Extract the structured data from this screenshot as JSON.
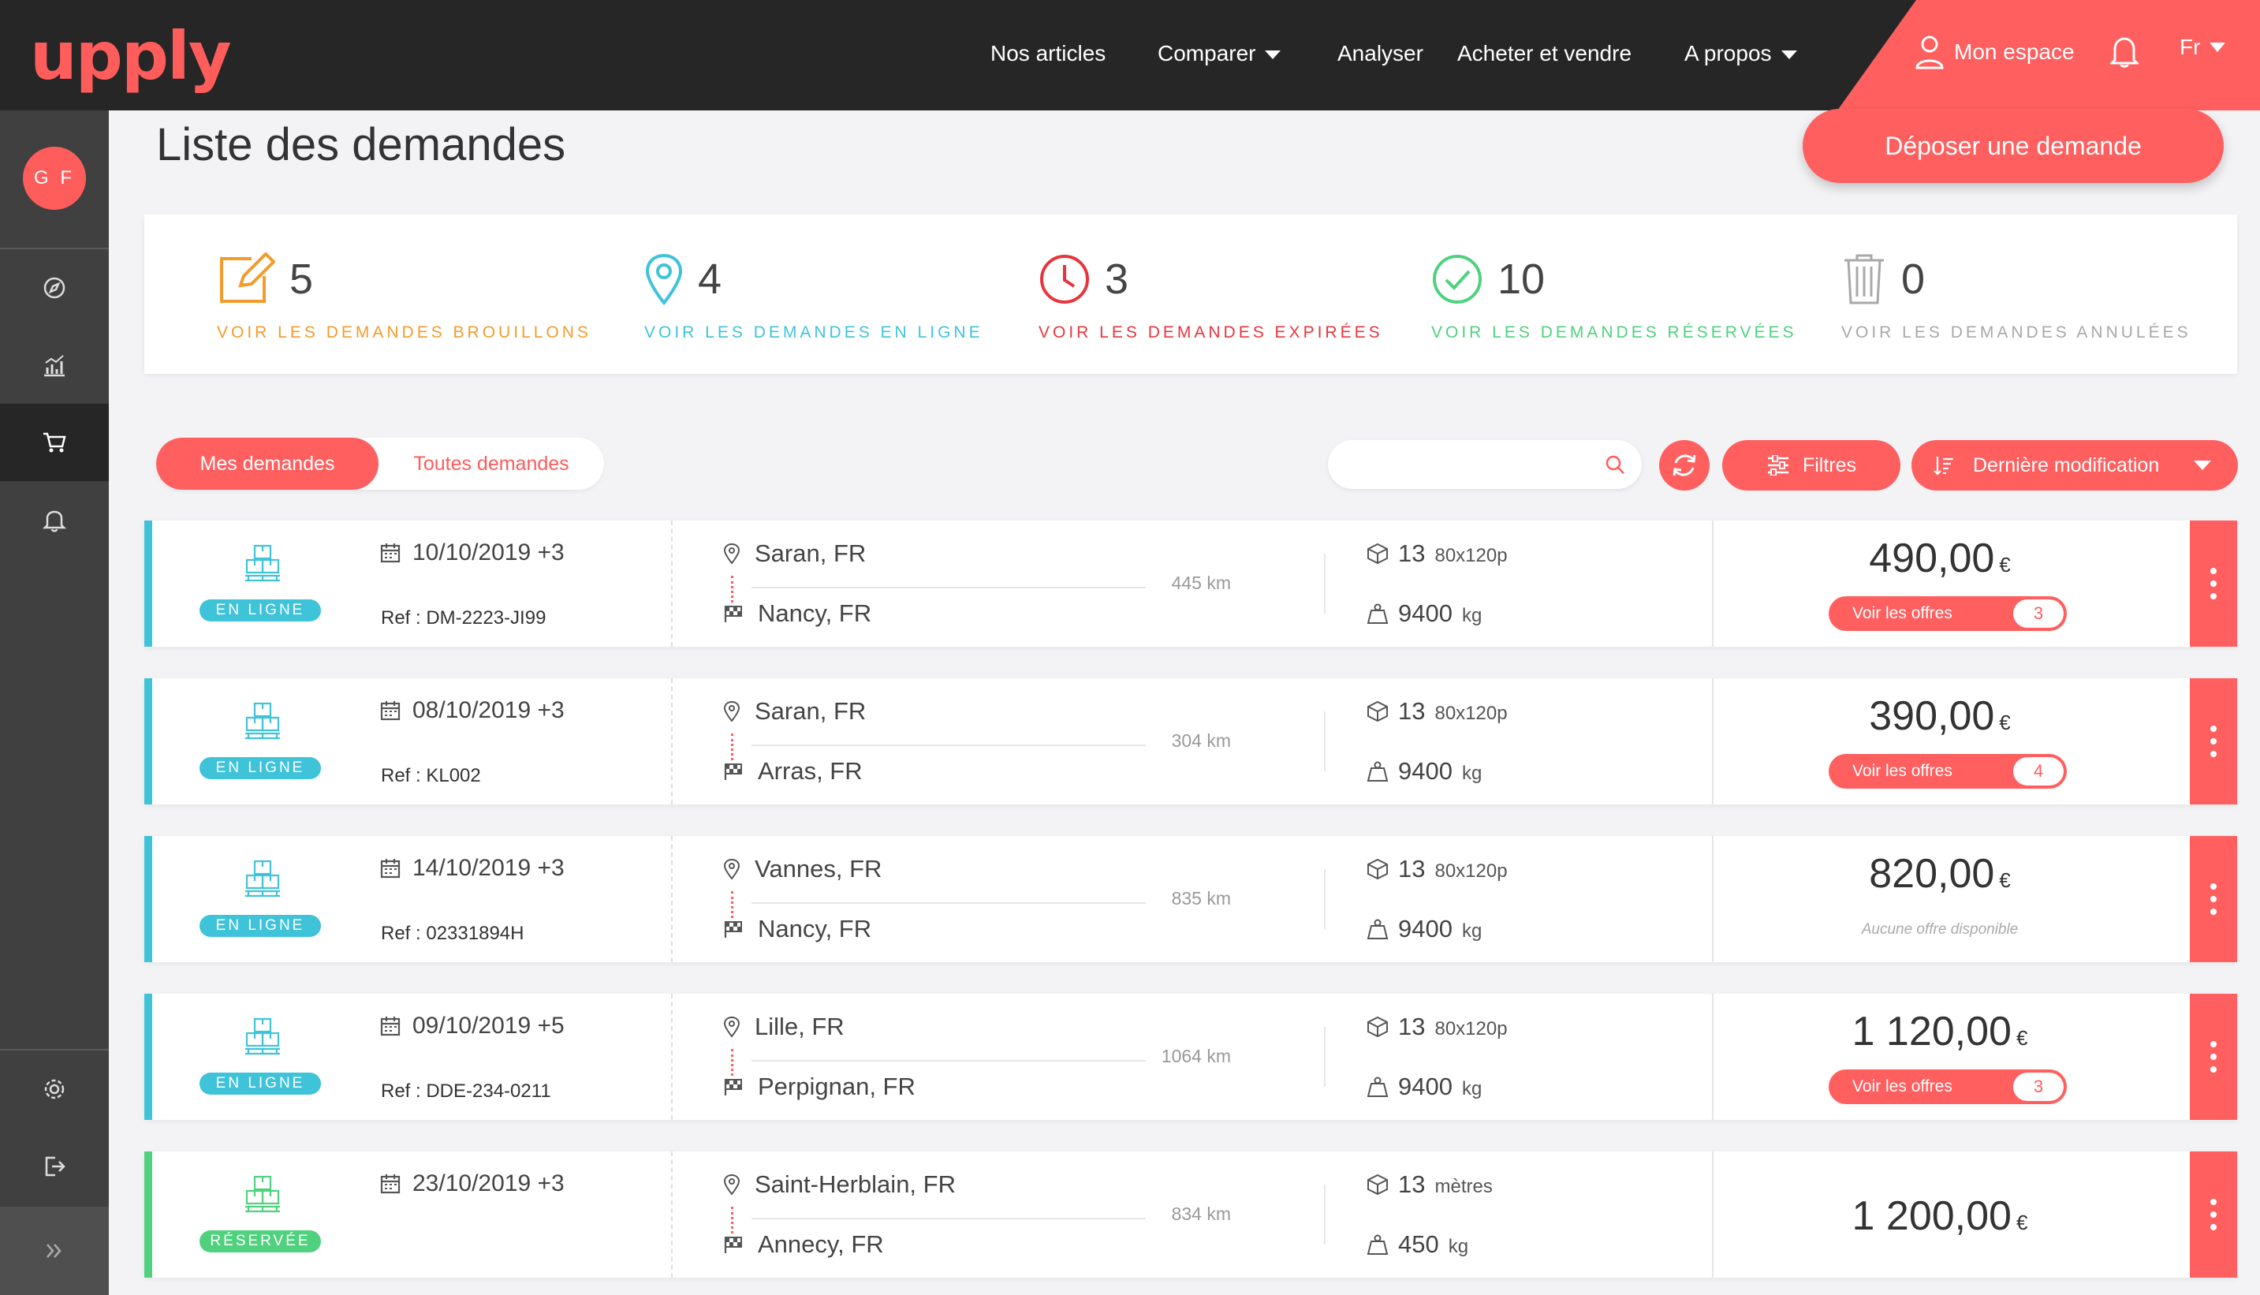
{
  "brand": {
    "logo_text": "upply",
    "accent": "#ff5f5f"
  },
  "nav": {
    "items": [
      {
        "label": "Nos articles",
        "has_caret": false
      },
      {
        "label": "Comparer",
        "has_caret": true
      },
      {
        "label": "Analyser",
        "has_caret": false
      },
      {
        "label": "Acheter et vendre",
        "has_caret": false
      },
      {
        "label": "A propos",
        "has_caret": true
      }
    ],
    "account_label": "Mon espace",
    "language": "Fr"
  },
  "sidebar": {
    "avatar_initials": "G F",
    "items": [
      {
        "icon": "compass-icon",
        "active": false
      },
      {
        "icon": "analytics-icon",
        "active": false
      },
      {
        "icon": "cart-icon",
        "active": true
      },
      {
        "icon": "bell-icon",
        "active": false
      }
    ],
    "bottom_items": [
      {
        "icon": "settings-icon"
      },
      {
        "icon": "logout-icon"
      }
    ],
    "expand_icon": "double-chevron-right-icon"
  },
  "page": {
    "title": "Liste des demandes",
    "deposit_button": "Déposer une demande"
  },
  "stats": [
    {
      "count": "5",
      "label": "VOIR LES DEMANDES BROUILLONS",
      "color": "#f39c2c",
      "icon": "edit-icon"
    },
    {
      "count": "4",
      "label": "VOIR LES DEMANDES EN LIGNE",
      "color": "#3fc3d9",
      "icon": "location-pin-icon"
    },
    {
      "count": "3",
      "label": "VOIR LES DEMANDES EXPIRÉES",
      "color": "#e8353d",
      "icon": "clock-icon"
    },
    {
      "count": "10",
      "label": "VOIR LES DEMANDES RÉSERVÉES",
      "color": "#4fd17e",
      "icon": "check-circle-icon"
    },
    {
      "count": "0",
      "label": "VOIR LES DEMANDES ANNULÉES",
      "color": "#a8a8a8",
      "icon": "trash-icon"
    }
  ],
  "tabs": {
    "mine": "Mes demandes",
    "all": "Toutes demandes",
    "active": "mine"
  },
  "toolbar": {
    "search_placeholder": "",
    "filters_label": "Filtres",
    "sort_label": "Dernière modification"
  },
  "requests": [
    {
      "status": "EN LIGNE",
      "status_color": "#3fc3d9",
      "date": "10/10/2019 +3",
      "ref": "Ref : DM-2223-JI99",
      "origin": "Saran, FR",
      "destination": "Nancy, FR",
      "distance": "445 km",
      "quantity": "13",
      "quantity_unit": "80x120p",
      "weight": "9400",
      "weight_unit": "kg",
      "price": "490,00",
      "currency": "€",
      "offers_label": "Voir les offres",
      "offers_count": "3",
      "no_offer_text": ""
    },
    {
      "status": "EN LIGNE",
      "status_color": "#3fc3d9",
      "date": "08/10/2019 +3",
      "ref": "Ref : KL002",
      "origin": "Saran, FR",
      "destination": "Arras, FR",
      "distance": "304 km",
      "quantity": "13",
      "quantity_unit": "80x120p",
      "weight": "9400",
      "weight_unit": "kg",
      "price": "390,00",
      "currency": "€",
      "offers_label": "Voir les offres",
      "offers_count": "4",
      "no_offer_text": ""
    },
    {
      "status": "EN LIGNE",
      "status_color": "#3fc3d9",
      "date": "14/10/2019 +3",
      "ref": "Ref : 02331894H",
      "origin": "Vannes, FR",
      "destination": "Nancy, FR",
      "distance": "835 km",
      "quantity": "13",
      "quantity_unit": "80x120p",
      "weight": "9400",
      "weight_unit": "kg",
      "price": "820,00",
      "currency": "€",
      "offers_label": "",
      "offers_count": "",
      "no_offer_text": "Aucune offre disponible"
    },
    {
      "status": "EN LIGNE",
      "status_color": "#3fc3d9",
      "date": "09/10/2019 +5",
      "ref": "Ref : DDE-234-0211",
      "origin": "Lille, FR",
      "destination": "Perpignan, FR",
      "distance": "1064 km",
      "quantity": "13",
      "quantity_unit": "80x120p",
      "weight": "9400",
      "weight_unit": "kg",
      "price": "1 120,00",
      "currency": "€",
      "offers_label": "Voir les offres",
      "offers_count": "3",
      "no_offer_text": ""
    },
    {
      "status": "RÉSERVÉE",
      "status_color": "#4fd17e",
      "date": "23/10/2019 +3",
      "ref": "",
      "origin": "Saint-Herblain, FR",
      "destination": "Annecy, FR",
      "distance": "834 km",
      "quantity": "13",
      "quantity_unit": "mètres",
      "weight": "450",
      "weight_unit": "kg",
      "price": "1 200,00",
      "currency": "€",
      "offers_label": "",
      "offers_count": "",
      "no_offer_text": ""
    }
  ]
}
